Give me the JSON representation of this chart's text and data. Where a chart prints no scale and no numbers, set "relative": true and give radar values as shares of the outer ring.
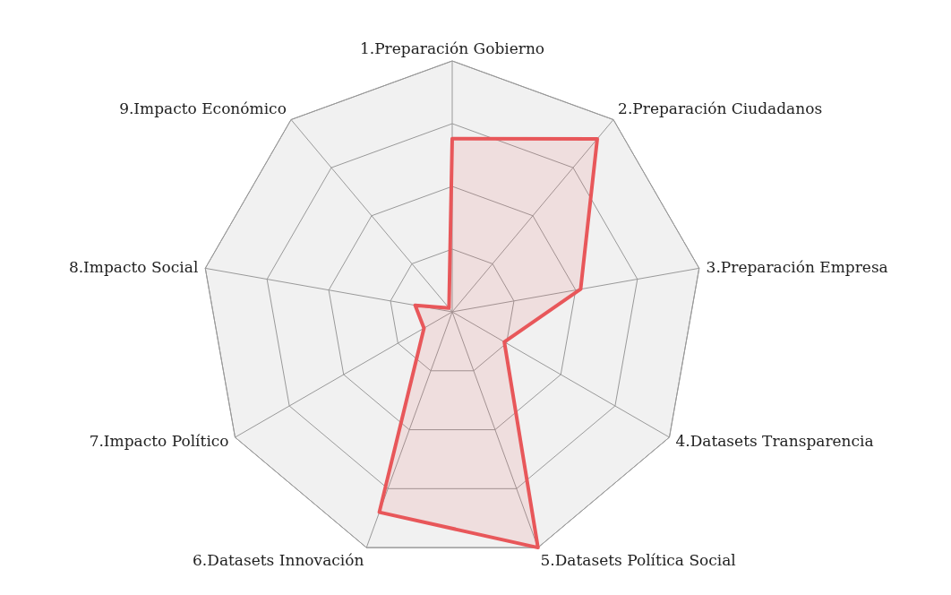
{
  "chart_data": {
    "type": "radar",
    "relative": true,
    "categories": [
      "1.Preparación Gobierno",
      "2.Preparación Ciudadanos",
      "3.Preparación Empresa",
      "4.Datasets Transparencia",
      "5.Datasets Política Social",
      "6.Datasets Innovación",
      "7.Impacto Político",
      "8.Impacto Social",
      "9.Impacto Económico"
    ],
    "series": [
      {
        "color": "#e8575a",
        "values": [
          0.69,
          0.9,
          0.52,
          0.24,
          1.0,
          0.85,
          0.13,
          0.15,
          0.02
        ]
      }
    ],
    "grid": true,
    "marker": "none"
  }
}
